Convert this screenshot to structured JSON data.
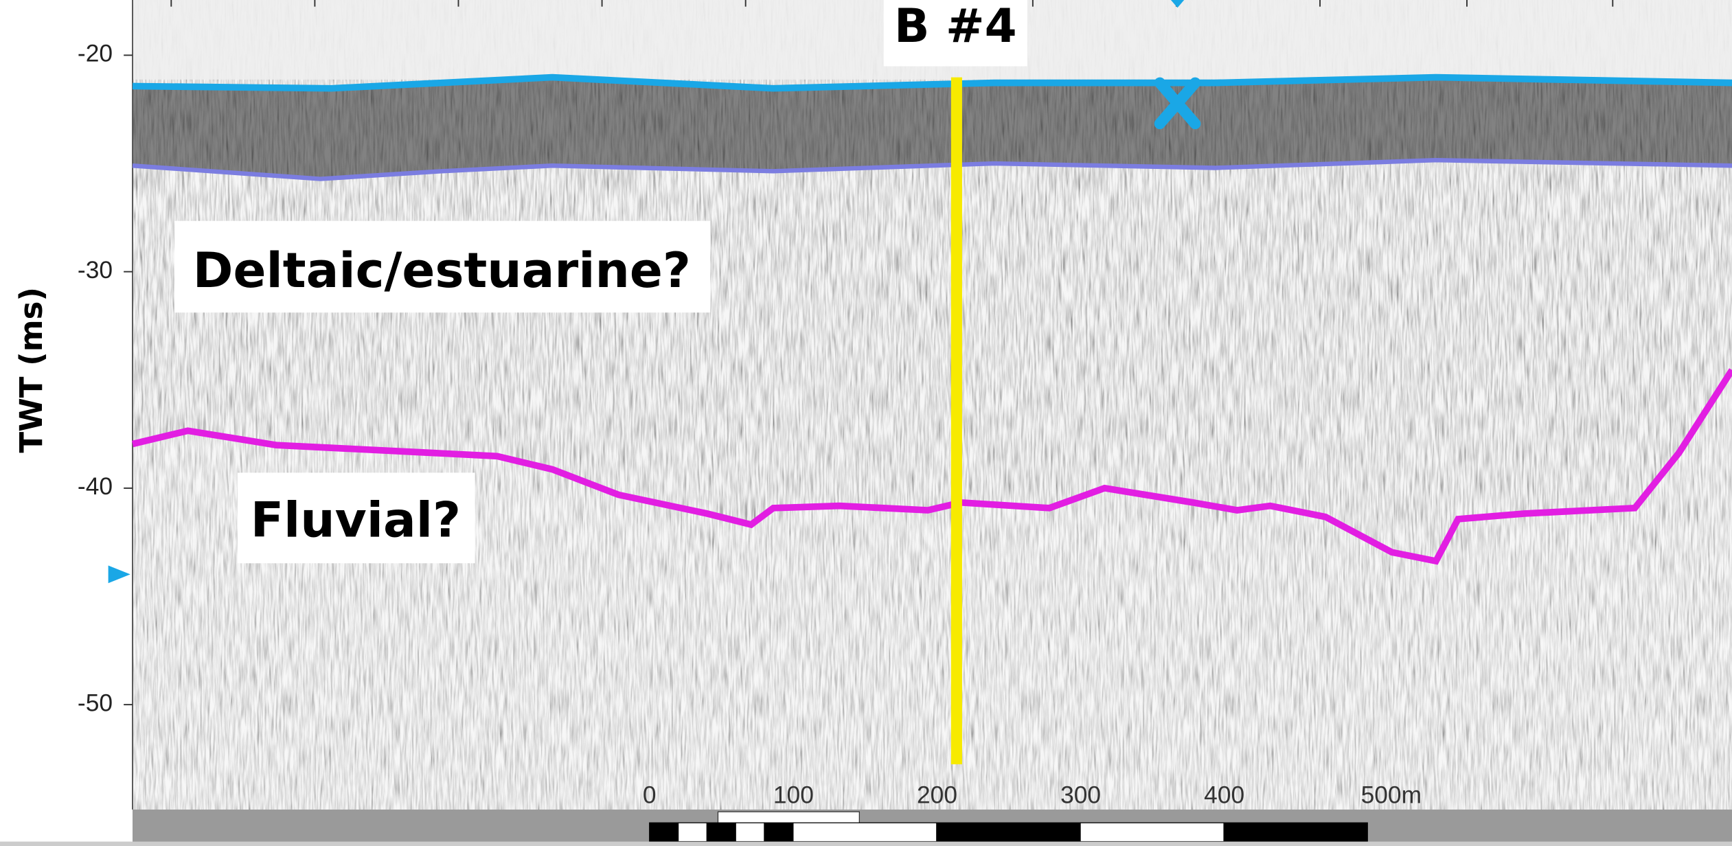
{
  "y_axis": {
    "label": "TWT (ms)",
    "ticks": [
      -20,
      -30,
      -40,
      -50
    ]
  },
  "annotations": {
    "well": "B #4",
    "upper_unit": "Deltaic/estuarine?",
    "lower_unit": "Fluvial?"
  },
  "scale_bar": {
    "labels": [
      "0",
      "100",
      "200",
      "300",
      "400",
      "500m"
    ]
  }
}
